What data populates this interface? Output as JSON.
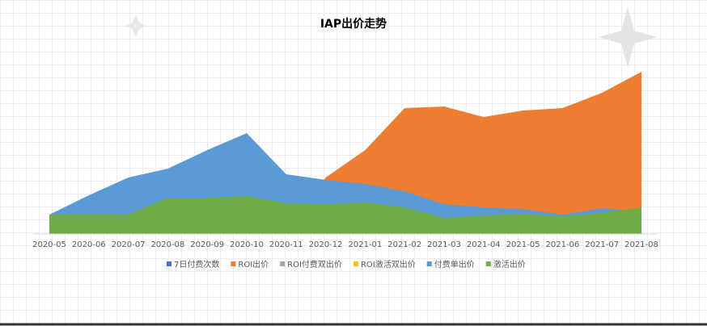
{
  "chart_data": {
    "type": "area",
    "title": "IAP出价走势",
    "categories": [
      "2020-05",
      "2020-06",
      "2020-07",
      "2020-08",
      "2020-09",
      "2020-10",
      "2020-11",
      "2020-12",
      "2021-01",
      "2021-02",
      "2021-03",
      "2021-04",
      "2021-05",
      "2021-06",
      "2021-07",
      "2021-08"
    ],
    "series": [
      {
        "name": "7日付费次数",
        "color": "#4472c4",
        "values": [
          0,
          0,
          0,
          0,
          0,
          0,
          0,
          0,
          0,
          0,
          0,
          0,
          0,
          0,
          0,
          0
        ]
      },
      {
        "name": "ROI出价",
        "color": "#ed7d31",
        "values": [
          0,
          0,
          0,
          0,
          0,
          0,
          0,
          70,
          104,
          156,
          158,
          145,
          153,
          156,
          175,
          201
        ]
      },
      {
        "name": "ROI付费双出价",
        "color": "#a5a5a5",
        "values": [
          0,
          0,
          0,
          0,
          0,
          0,
          0,
          0,
          0,
          0,
          0,
          0,
          0,
          0,
          0,
          0
        ]
      },
      {
        "name": "ROI激活双出价",
        "color": "#ffc000",
        "values": [
          0,
          0,
          0,
          0,
          0,
          0,
          0,
          0,
          0,
          0,
          0,
          0,
          0,
          0,
          0,
          0
        ]
      },
      {
        "name": "付费单出价",
        "color": "#5b9bd5",
        "values": [
          24,
          48,
          70,
          81,
          104,
          125,
          74,
          67,
          62,
          53,
          37,
          33,
          31,
          24,
          32,
          28
        ]
      },
      {
        "name": "激活出价",
        "color": "#70ad47",
        "values": [
          24,
          24,
          24,
          45,
          45,
          47,
          38,
          37,
          39,
          33,
          20,
          23,
          25,
          22,
          26,
          33
        ]
      }
    ],
    "ylim": [
      0,
      220
    ]
  }
}
